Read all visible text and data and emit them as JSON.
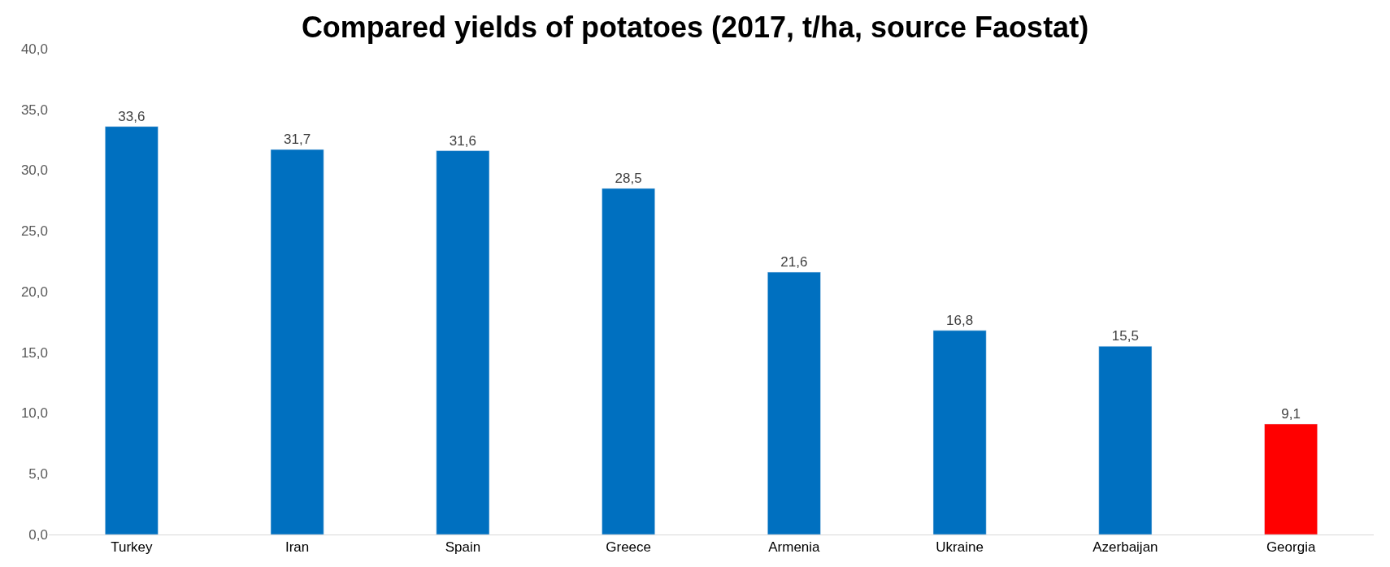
{
  "chart_data": {
    "type": "bar",
    "title": "Compared yields of potatoes (2017, t/ha, source Faostat)",
    "categories": [
      "Turkey",
      "Iran",
      "Spain",
      "Greece",
      "Armenia",
      "Ukraine",
      "Azerbaijan",
      "Georgia"
    ],
    "values": [
      33.6,
      31.7,
      31.6,
      28.5,
      21.6,
      16.8,
      15.5,
      9.1
    ],
    "colors": [
      "#0070c0",
      "#0070c0",
      "#0070c0",
      "#0070c0",
      "#0070c0",
      "#0070c0",
      "#0070c0",
      "#ff0000"
    ],
    "value_labels": [
      "33,6",
      "31,7",
      "31,6",
      "28,5",
      "21,6",
      "16,8",
      "15,5",
      "9,1"
    ],
    "ylim": [
      0,
      40
    ],
    "yticks": [
      {
        "value": 0,
        "label": "0,0"
      },
      {
        "value": 5,
        "label": "5,0"
      },
      {
        "value": 10,
        "label": "10,0"
      },
      {
        "value": 15,
        "label": "15,0"
      },
      {
        "value": 20,
        "label": "20,0"
      },
      {
        "value": 25,
        "label": "25,0"
      },
      {
        "value": 30,
        "label": "30,0"
      },
      {
        "value": 35,
        "label": "35,0"
      },
      {
        "value": 40,
        "label": "40,0"
      }
    ],
    "grid": false
  }
}
